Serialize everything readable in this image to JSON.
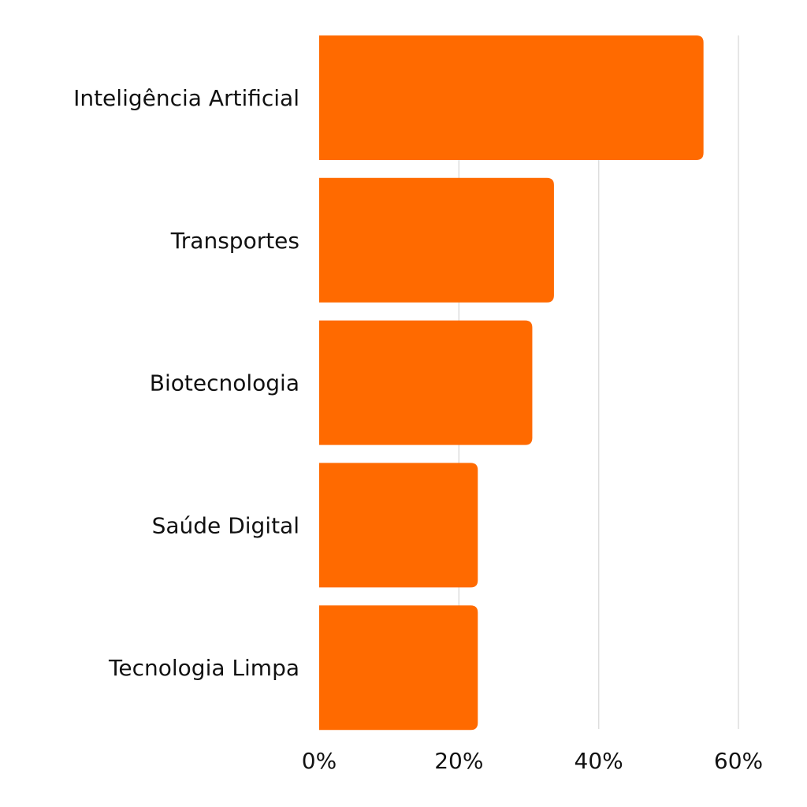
{
  "chart_data": {
    "type": "bar",
    "orientation": "horizontal",
    "title": "",
    "xlabel": "",
    "ylabel": "",
    "categories": [
      "Inteligência Artificial",
      "Transportes",
      "Biotecnologia",
      "Saúde Digital",
      "Tecnologia Limpa"
    ],
    "values": [
      55,
      33.6,
      30.5,
      22.7,
      22.7
    ],
    "xlim": [
      0,
      60
    ],
    "xticks": [
      0,
      20,
      40,
      60
    ],
    "tick_format": "%",
    "tick_labels": [
      "0%",
      "20%",
      "40%",
      "60%"
    ],
    "grid": "vertical",
    "bar_color": "#ff6a00",
    "grid_color": "#dddddd"
  }
}
